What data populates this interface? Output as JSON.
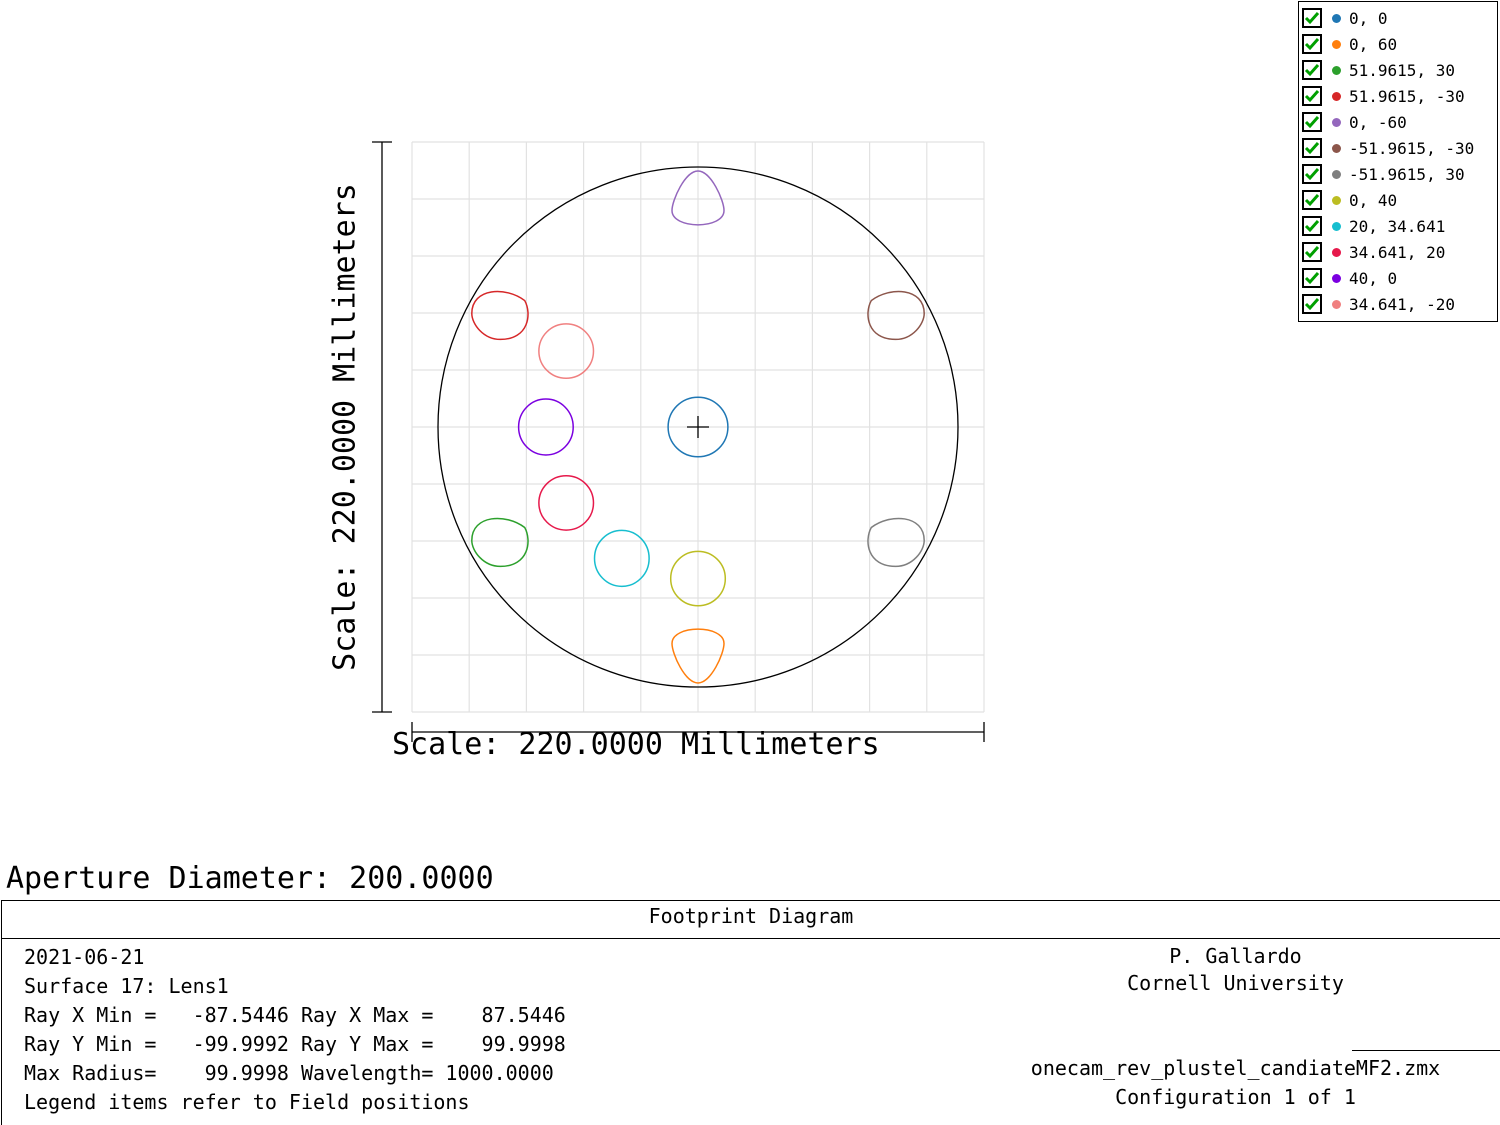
{
  "chart_data": {
    "type": "scatter",
    "title": "Footprint Diagram",
    "xlabel": "Scale: 220.0000 Millimeters",
    "ylabel": "Scale: 220.0000 Millimeters",
    "xlim": [
      -110,
      110
    ],
    "ylim": [
      -110,
      110
    ],
    "grid": true,
    "aperture_radius": 100,
    "legend_position": "top-right",
    "series": [
      {
        "name": "0, 0",
        "color": "#1f77b4",
        "cx": 0,
        "cy": 0,
        "rx": 11.5,
        "ry": 11.5,
        "shape": "round"
      },
      {
        "name": "0, 60",
        "color": "#ff7f0e",
        "cx": 0,
        "cy": -87.5,
        "rx": 10,
        "ry": 11.3,
        "shape": "drop-down"
      },
      {
        "name": "51.9615, 30",
        "color": "#2ca02c",
        "cx": -76,
        "cy": -43.8,
        "rx": 11,
        "ry": 10,
        "shape": "drop-left"
      },
      {
        "name": "51.9615, -30",
        "color": "#d62728",
        "cx": -76,
        "cy": 43.8,
        "rx": 11,
        "ry": 10,
        "shape": "drop-left"
      },
      {
        "name": "0, -60",
        "color": "#9467bd",
        "cx": 0,
        "cy": 87.5,
        "rx": 10,
        "ry": 11.3,
        "shape": "drop-up"
      },
      {
        "name": "-51.9615, -30",
        "color": "#8c564b",
        "cx": 76,
        "cy": 43.8,
        "rx": 11,
        "ry": 10,
        "shape": "drop-right"
      },
      {
        "name": "-51.9615, 30",
        "color": "#7f7f7f",
        "cx": 76,
        "cy": -43.8,
        "rx": 11,
        "ry": 10,
        "shape": "drop-right"
      },
      {
        "name": "0, 40",
        "color": "#bcbd22",
        "cx": 0,
        "cy": -58.5,
        "rx": 10.5,
        "ry": 10.5,
        "shape": "round"
      },
      {
        "name": "20, 34.641",
        "color": "#17becf",
        "cx": -29.3,
        "cy": -50.7,
        "rx": 10.5,
        "ry": 10.8,
        "shape": "round"
      },
      {
        "name": "34.641, 20",
        "color": "#e6194b",
        "cx": -50.7,
        "cy": -29.3,
        "rx": 10.5,
        "ry": 10.5,
        "shape": "round"
      },
      {
        "name": "40, 0",
        "color": "#7b00e0",
        "cx": -58.5,
        "cy": 0,
        "rx": 10.5,
        "ry": 10.8,
        "shape": "round"
      },
      {
        "name": "34.641, -20",
        "color": "#f08080",
        "cx": -50.7,
        "cy": 29.3,
        "rx": 10.5,
        "ry": 10.5,
        "shape": "round"
      }
    ]
  },
  "legend_checked_color": "#00a000",
  "aperture_label": "Aperture Diameter: 200.0000",
  "info": {
    "title": "Footprint Diagram",
    "date": "2021-06-21",
    "surface": "Surface 17: Lens1",
    "ray_x": "Ray X Min =   -87.5446 Ray X Max =    87.5446",
    "ray_y": "Ray Y Min =   -99.9992 Ray Y Max =    99.9998",
    "max_radius": "Max Radius=    99.9998 Wavelength= 1000.0000",
    "legend_note": "Legend items refer to Field positions",
    "author": "P. Gallardo",
    "org": "Cornell University",
    "file": "onecam_rev_plustel_candiateMF2.zmx",
    "config": "Configuration 1 of 1"
  }
}
